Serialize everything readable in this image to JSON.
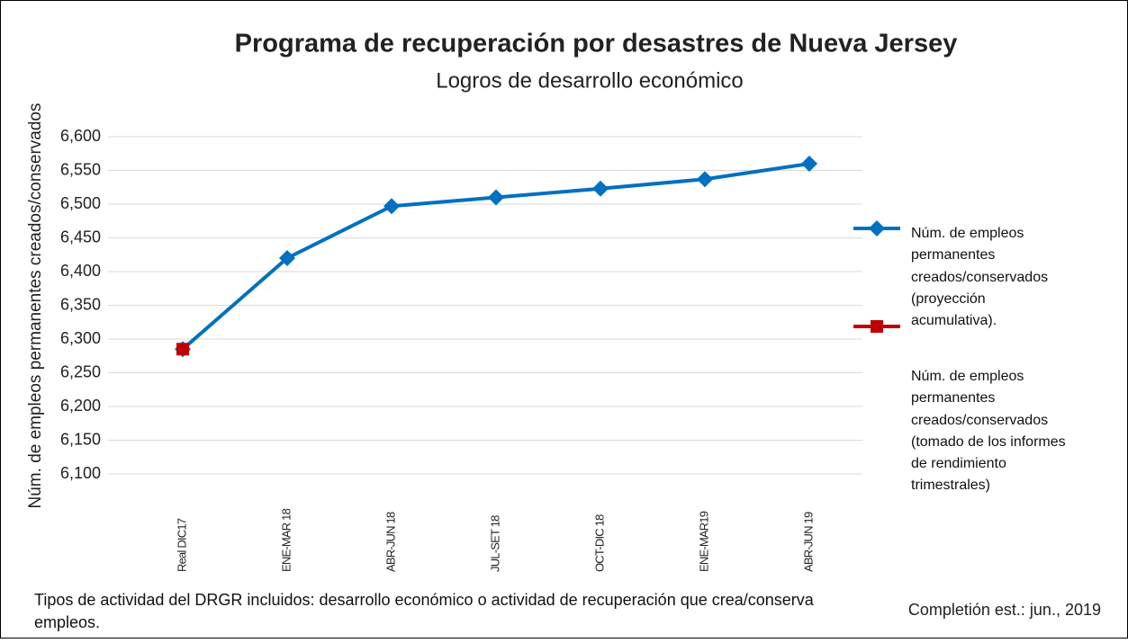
{
  "chart_data": {
    "type": "line",
    "title": "Programa de recuperación por desastres de Nueva Jersey",
    "subtitle": "Logros de desarrollo económico",
    "y_label": "Núm. de empleos permanentes creados/conservados",
    "categories": [
      "Real DIC17",
      "ENE-MAR 18",
      "ABR-JUN 18",
      "JUL-SET 18",
      "OCT-DIC 18",
      "ENE-MAR19",
      "ABR-JUN 19"
    ],
    "series": [
      {
        "name": "Núm. de empleos permanentes creados/conservados (proyección acumulativa).",
        "color": "#0070c0",
        "marker": "diamond",
        "values": [
          6285,
          6420,
          6497,
          6510,
          6523,
          6537,
          6560
        ]
      },
      {
        "name": "Núm. de empleos permanentes creados/conservados (tomado de los informes de rendimiento trimestrales)",
        "color": "#c00000",
        "marker": "square",
        "values": [
          6285,
          null,
          null,
          null,
          null,
          null,
          null
        ]
      }
    ],
    "ylim": [
      6100,
      6600
    ],
    "yticks": [
      {
        "value": 6100,
        "label": "6,100"
      },
      {
        "value": 6150,
        "label": "6,150"
      },
      {
        "value": 6200,
        "label": "6,200"
      },
      {
        "value": 6250,
        "label": "6,250"
      },
      {
        "value": 6300,
        "label": "6,300"
      },
      {
        "value": 6350,
        "label": "6,350"
      },
      {
        "value": 6400,
        "label": "6,400"
      },
      {
        "value": 6450,
        "label": "6,450"
      },
      {
        "value": 6500,
        "label": "6,500"
      },
      {
        "value": 6550,
        "label": "6,550"
      },
      {
        "value": 6600,
        "label": "6,600"
      }
    ],
    "grid": true,
    "legend": "right",
    "footnote": "Tipos de actividad del DRGR incluidos: desarrollo económico o actividad de recuperación que crea/conserva empleos.",
    "completion": "Completión est.: jun., 2019"
  }
}
